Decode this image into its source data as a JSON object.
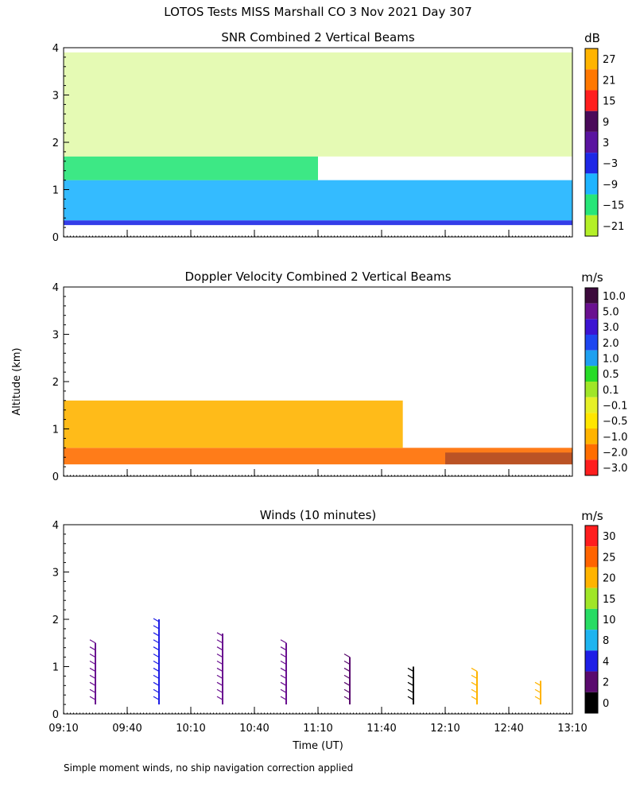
{
  "header": {
    "title": "LOTOS Tests MISS Marshall CO   3 Nov 2021 Day 307"
  },
  "footer": {
    "note": "Simple moment winds, no ship navigation correction applied"
  },
  "axes": {
    "ylabel": "Altitude (km)",
    "xlabel": "Time (UT)",
    "x_ticks": [
      "09:10",
      "09:40",
      "10:10",
      "10:40",
      "11:10",
      "11:40",
      "12:10",
      "12:40",
      "13:10"
    ],
    "y_ticks": [
      "0",
      "1",
      "2",
      "3",
      "4"
    ]
  },
  "chart_data": [
    {
      "type": "heatmap",
      "title": "SNR Combined 2 Vertical Beams",
      "colorbar_unit": "dB",
      "colorbar_labels": [
        "27",
        "21",
        "15",
        "9",
        "3",
        "−3",
        "−9",
        "−15",
        "−21"
      ],
      "colorbar_colors": [
        "#ffb400",
        "#ff7800",
        "#ff1e1e",
        "#4a0a5a",
        "#5a14a0",
        "#1e28e6",
        "#1eb4ff",
        "#28e678",
        "#b4f028"
      ],
      "xlim": [
        0,
        240
      ],
      "ylim": [
        0,
        4
      ],
      "xlabel": "",
      "ylabel": "Altitude (km)",
      "layers": [
        {
          "name": "surface layer",
          "x": [
            0,
            240
          ],
          "y": [
            0.25,
            0.35
          ],
          "color": "#1e28e6"
        },
        {
          "name": "mid boundary layer",
          "x": [
            0,
            240
          ],
          "y": [
            0.35,
            1.2
          ],
          "color": "#1eb4ff"
        },
        {
          "name": "upper boundary layer",
          "x": [
            0,
            120
          ],
          "y": [
            1.2,
            1.7
          ],
          "color": "#28e678"
        },
        {
          "name": "residual echoes",
          "x": [
            0,
            240
          ],
          "y": [
            1.7,
            3.9
          ],
          "color": "#b4f028"
        }
      ]
    },
    {
      "type": "heatmap",
      "title": "Doppler Velocity Combined 2 Vertical Beams",
      "colorbar_unit": "m/s",
      "colorbar_labels": [
        "10.0",
        "5.0",
        "3.0",
        "2.0",
        "1.0",
        "0.5",
        "0.1",
        "−0.1",
        "−0.5",
        "−1.0",
        "−2.0",
        "−3.0"
      ],
      "colorbar_colors": [
        "#3c0a3c",
        "#6a1090",
        "#3c14d2",
        "#1e46f0",
        "#1ea0f0",
        "#28dc28",
        "#a0e628",
        "#e6f028",
        "#ffe600",
        "#ffb400",
        "#ff6e00",
        "#ff1e1e"
      ],
      "xlim": [
        0,
        240
      ],
      "ylim": [
        0,
        4
      ],
      "xlabel": "",
      "ylabel": "Altitude (km)",
      "layers": [
        {
          "name": "descending core",
          "x": [
            0,
            240
          ],
          "y": [
            0.25,
            0.6
          ],
          "color": "#ff6e00"
        },
        {
          "name": "weak motion layer",
          "x": [
            0,
            160
          ],
          "y": [
            0.6,
            1.6
          ],
          "color": "#ffb400"
        },
        {
          "name": "low level updraft",
          "x": [
            180,
            240
          ],
          "y": [
            0.25,
            0.5
          ],
          "color": "#3c0a3c"
        }
      ]
    },
    {
      "type": "scatter",
      "title": "Winds (10 minutes)",
      "colorbar_unit": "m/s",
      "colorbar_labels": [
        "30",
        "25",
        "20",
        "15",
        "10",
        "8",
        "4",
        "2",
        "0"
      ],
      "colorbar_colors": [
        "#ff1e1e",
        "#ff6400",
        "#ffb400",
        "#a0e628",
        "#28dc64",
        "#1eb4f0",
        "#1e1ee6",
        "#5a0a6e",
        "#000000"
      ],
      "xlim": [
        0,
        240
      ],
      "ylim": [
        0,
        4
      ],
      "xlabel": "Time (UT)",
      "ylabel": "Altitude (km)",
      "profiles": [
        {
          "time": 15,
          "top": 1.5,
          "color": "#6a1090"
        },
        {
          "time": 45,
          "top": 2.0,
          "color": "#1e1ee6"
        },
        {
          "time": 75,
          "top": 1.7,
          "color": "#6a1090"
        },
        {
          "time": 105,
          "top": 1.5,
          "color": "#6a1090"
        },
        {
          "time": 135,
          "top": 1.2,
          "color": "#5a0a6e"
        },
        {
          "time": 165,
          "top": 1.0,
          "color": "#000000"
        },
        {
          "time": 195,
          "top": 0.9,
          "color": "#ffb400"
        },
        {
          "time": 225,
          "top": 0.7,
          "color": "#ffb400"
        }
      ]
    }
  ]
}
